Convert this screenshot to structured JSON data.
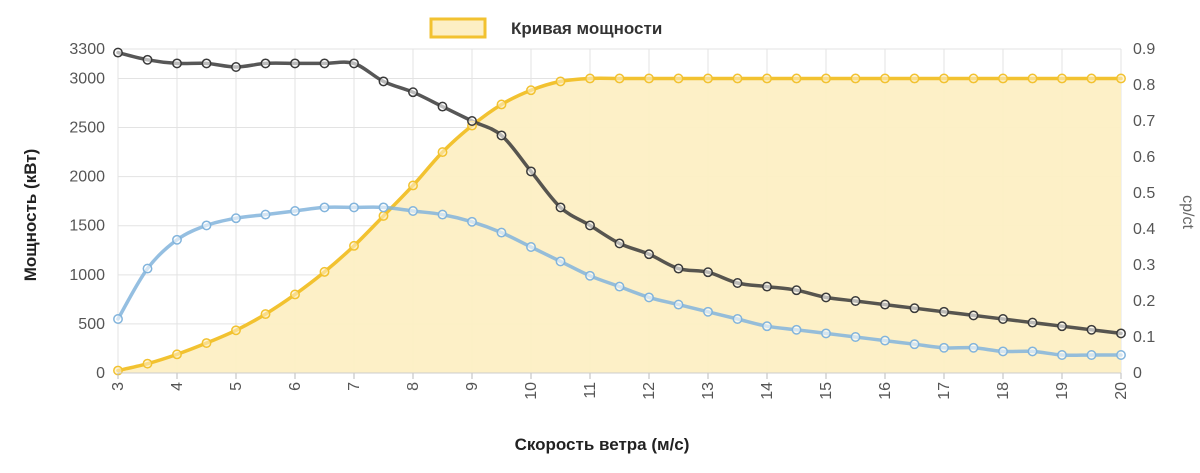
{
  "chart_data": {
    "type": "line",
    "title": "",
    "legend": {
      "placement": "top-center",
      "entries": [
        "Кривая мощности"
      ]
    },
    "grid": true,
    "xlabel": "Скорость ветра (м/с)",
    "ylabel_left": "Мощность (кВт)",
    "ylabel_right": "cp/ct",
    "xlim": [
      3,
      20
    ],
    "ylim_left": [
      0,
      3300
    ],
    "ylim_right": [
      0,
      0.9
    ],
    "x_ticks": [
      3,
      4,
      5,
      6,
      7,
      8,
      9,
      10,
      11,
      12,
      13,
      14,
      15,
      16,
      17,
      18,
      19,
      20
    ],
    "y_left_ticks": [
      0,
      500,
      1000,
      1500,
      2000,
      2500,
      3000,
      3300
    ],
    "y_right_ticks": [
      0,
      0.1,
      0.2,
      0.3,
      0.4,
      0.5,
      0.6,
      0.7,
      0.8,
      0.9
    ],
    "x": [
      3,
      3.5,
      4,
      4.5,
      5,
      5.5,
      6,
      6.5,
      7,
      7.5,
      8,
      8.5,
      9,
      9.5,
      10,
      10.5,
      11,
      11.5,
      12,
      12.5,
      13,
      13.5,
      14,
      14.5,
      15,
      15.5,
      16,
      16.5,
      17,
      17.5,
      18,
      18.5,
      19,
      19.5,
      20
    ],
    "series": [
      {
        "name": "Кривая мощности",
        "axis": "left",
        "color": "#f2c230",
        "fill": "#fdefc4",
        "values": [
          25,
          95,
          190,
          305,
          435,
          600,
          800,
          1030,
          1295,
          1600,
          1910,
          2250,
          2520,
          2735,
          2880,
          2970,
          3000,
          3000,
          3000,
          3000,
          3000,
          3000,
          3000,
          3000,
          3000,
          3000,
          3000,
          3000,
          3000,
          3000,
          3000,
          3000,
          3000,
          3000,
          3000
        ]
      },
      {
        "axis": "right",
        "color": "#3a3a3a",
        "values": [
          0.89,
          0.87,
          0.86,
          0.86,
          0.85,
          0.86,
          0.86,
          0.86,
          0.86,
          0.81,
          0.78,
          0.74,
          0.7,
          0.66,
          0.56,
          0.46,
          0.41,
          0.36,
          0.33,
          0.29,
          0.28,
          0.25,
          0.24,
          0.23,
          0.21,
          0.2,
          0.19,
          0.18,
          0.17,
          0.16,
          0.15,
          0.14,
          0.13,
          0.12,
          0.11
        ]
      },
      {
        "axis": "right",
        "color": "#82b4dc",
        "values": [
          0.15,
          0.29,
          0.37,
          0.41,
          0.43,
          0.44,
          0.45,
          0.46,
          0.46,
          0.46,
          0.45,
          0.44,
          0.42,
          0.39,
          0.35,
          0.31,
          0.27,
          0.24,
          0.21,
          0.19,
          0.17,
          0.15,
          0.13,
          0.12,
          0.11,
          0.1,
          0.09,
          0.08,
          0.07,
          0.07,
          0.06,
          0.06,
          0.05,
          0.05,
          0.05
        ]
      }
    ]
  }
}
